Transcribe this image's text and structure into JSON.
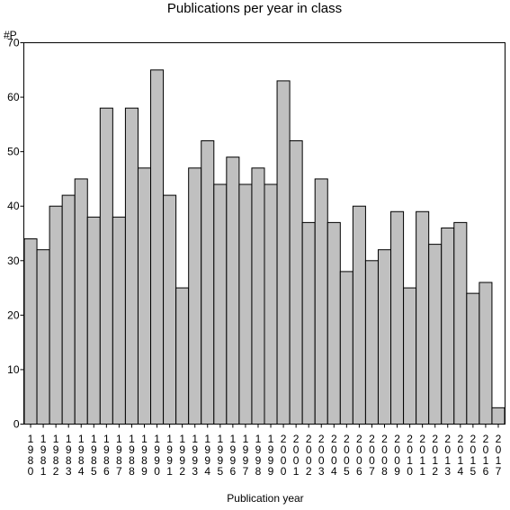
{
  "chart_data": {
    "type": "bar",
    "title": "Publications per year in class",
    "ylabel": "#P",
    "xlabel": "Publication year",
    "ylim": [
      0,
      70
    ],
    "yticks": [
      0,
      10,
      20,
      30,
      40,
      50,
      60,
      70
    ],
    "grid": false,
    "categories": [
      "1980",
      "1981",
      "1982",
      "1983",
      "1984",
      "1985",
      "1986",
      "1987",
      "1988",
      "1989",
      "1990",
      "1991",
      "1992",
      "1993",
      "1994",
      "1995",
      "1996",
      "1997",
      "1998",
      "1999",
      "2000",
      "2001",
      "2002",
      "2003",
      "2004",
      "2005",
      "2006",
      "2007",
      "2008",
      "2009",
      "2010",
      "2011",
      "2012",
      "2013",
      "2014",
      "2015",
      "2016",
      "2017"
    ],
    "values": [
      34,
      32,
      40,
      42,
      45,
      38,
      58,
      38,
      58,
      47,
      65,
      42,
      25,
      47,
      52,
      44,
      49,
      44,
      47,
      44,
      63,
      52,
      37,
      45,
      37,
      28,
      40,
      30,
      32,
      39,
      25,
      39,
      33,
      36,
      37,
      24,
      26,
      3
    ],
    "colors": {
      "bar_fill": "#c0c0c0",
      "bar_stroke": "#000000"
    }
  }
}
